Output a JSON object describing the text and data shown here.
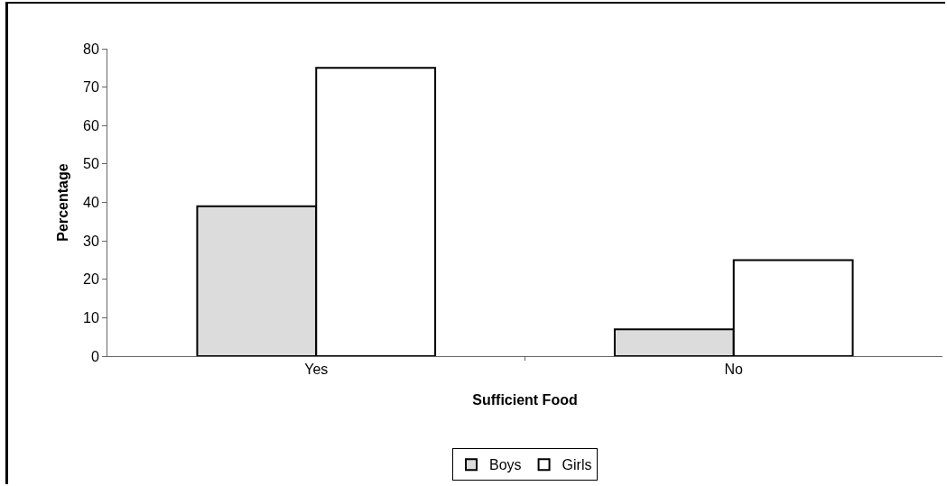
{
  "chart_data": {
    "type": "bar",
    "xlabel": "Sufficient Food",
    "ylabel": "Percentage",
    "categories": [
      "Yes",
      "No"
    ],
    "series": [
      {
        "name": "Boys",
        "color": "#dcdcdc",
        "values": [
          39,
          7
        ]
      },
      {
        "name": "Girls",
        "color": "#ffffff",
        "values": [
          75,
          25
        ]
      }
    ],
    "ylim": [
      0,
      80
    ],
    "yticks": [
      0,
      10,
      20,
      30,
      40,
      50,
      60,
      70,
      80
    ],
    "grid": false,
    "legend": "bottom"
  }
}
